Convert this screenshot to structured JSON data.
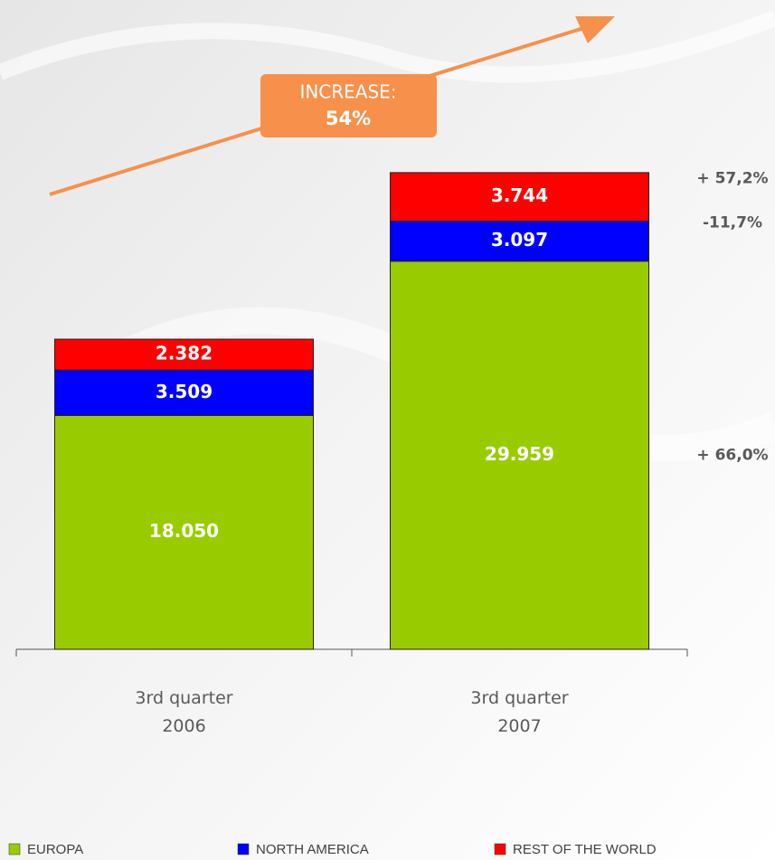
{
  "chart_data": {
    "type": "stacked_bar",
    "categories": [
      "3rd quarter\n2006",
      "3rd quarter\n2007"
    ],
    "series": [
      {
        "name": "EUROPA",
        "color": "#99cc00",
        "values": [
          18050,
          29959
        ],
        "value_labels": [
          "18.050",
          "29.959"
        ],
        "change": "+ 66,0%"
      },
      {
        "name": "NORTH AMERICA",
        "color": "#0000ff",
        "values": [
          3509,
          3097
        ],
        "value_labels": [
          "3.509",
          "3.097"
        ],
        "change": "-11,7%"
      },
      {
        "name": "REST OF THE WORLD",
        "color": "#ff0000",
        "values": [
          2382,
          3744
        ],
        "value_labels": [
          "2.382",
          "3.744"
        ],
        "change": "+ 57,2%"
      }
    ],
    "ylim": [
      0,
      37000
    ],
    "annotation": {
      "label": "INCREASE:",
      "value": "54%",
      "color": "#f7904a"
    }
  }
}
